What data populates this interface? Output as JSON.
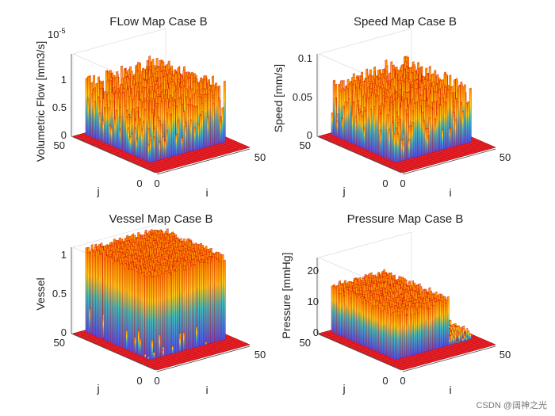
{
  "chart_data": [
    {
      "type": "surface",
      "title": "FLow Map Case B",
      "xlabel": "i",
      "ylabel": "j",
      "zlabel": "Volumetric Flow [mm3/s]",
      "exponent": "10",
      "exponent_power": "-5",
      "x_ticks": [
        "0",
        "50"
      ],
      "y_ticks": [
        "0",
        "50"
      ],
      "z_ticks": [
        "0",
        "0.5",
        "1"
      ],
      "zlim": [
        0,
        1.5
      ],
      "grid_size": [
        50,
        50
      ],
      "active_region": {
        "i": [
          5,
          45
        ],
        "j": [
          10,
          48
        ]
      },
      "peak": 1.45,
      "mean_active_level": 0.75
    },
    {
      "type": "surface",
      "title": "Speed Map Case B",
      "xlabel": "i",
      "ylabel": "j",
      "zlabel": "Speed [mm/s]",
      "x_ticks": [
        "0",
        "50"
      ],
      "y_ticks": [
        "0",
        "50"
      ],
      "z_ticks": [
        "0",
        "0.05",
        "0.1"
      ],
      "zlim": [
        0,
        0.1
      ],
      "grid_size": [
        50,
        50
      ],
      "active_region": {
        "i": [
          5,
          45
        ],
        "j": [
          10,
          48
        ]
      },
      "peak": 0.09,
      "mean_active_level": 0.05
    },
    {
      "type": "surface",
      "title": "Vessel Map Case B",
      "xlabel": "i",
      "ylabel": "j",
      "zlabel": "Vessel",
      "x_ticks": [
        "0",
        "50"
      ],
      "y_ticks": [
        "0",
        "50"
      ],
      "z_ticks": [
        "0",
        "0.5",
        "1"
      ],
      "zlim": [
        0,
        1
      ],
      "grid_size": [
        50,
        50
      ],
      "active_region": {
        "i": [
          5,
          45
        ],
        "j": [
          10,
          48
        ]
      },
      "peak": 1,
      "mean_active_level": 1
    },
    {
      "type": "surface",
      "title": "Pressure Map Case B",
      "xlabel": "i",
      "ylabel": "j",
      "zlabel": "Pressure [mmHg]",
      "x_ticks": [
        "0",
        "50"
      ],
      "y_ticks": [
        "0",
        "50"
      ],
      "z_ticks": [
        "0",
        "10",
        "20"
      ],
      "zlim": [
        0,
        25
      ],
      "grid_size": [
        50,
        50
      ],
      "active_region": {
        "i": [
          5,
          45
        ],
        "j": [
          10,
          48
        ]
      },
      "peak": 17,
      "mean_active_level": 15
    }
  ],
  "watermark": "CSDN @阔神之光",
  "colors": {
    "surface_red": "#e8222a",
    "edge": "#cc0000",
    "tip": "#ffd21a",
    "mid": "#39c4c4",
    "low": "#4a4ff0"
  }
}
